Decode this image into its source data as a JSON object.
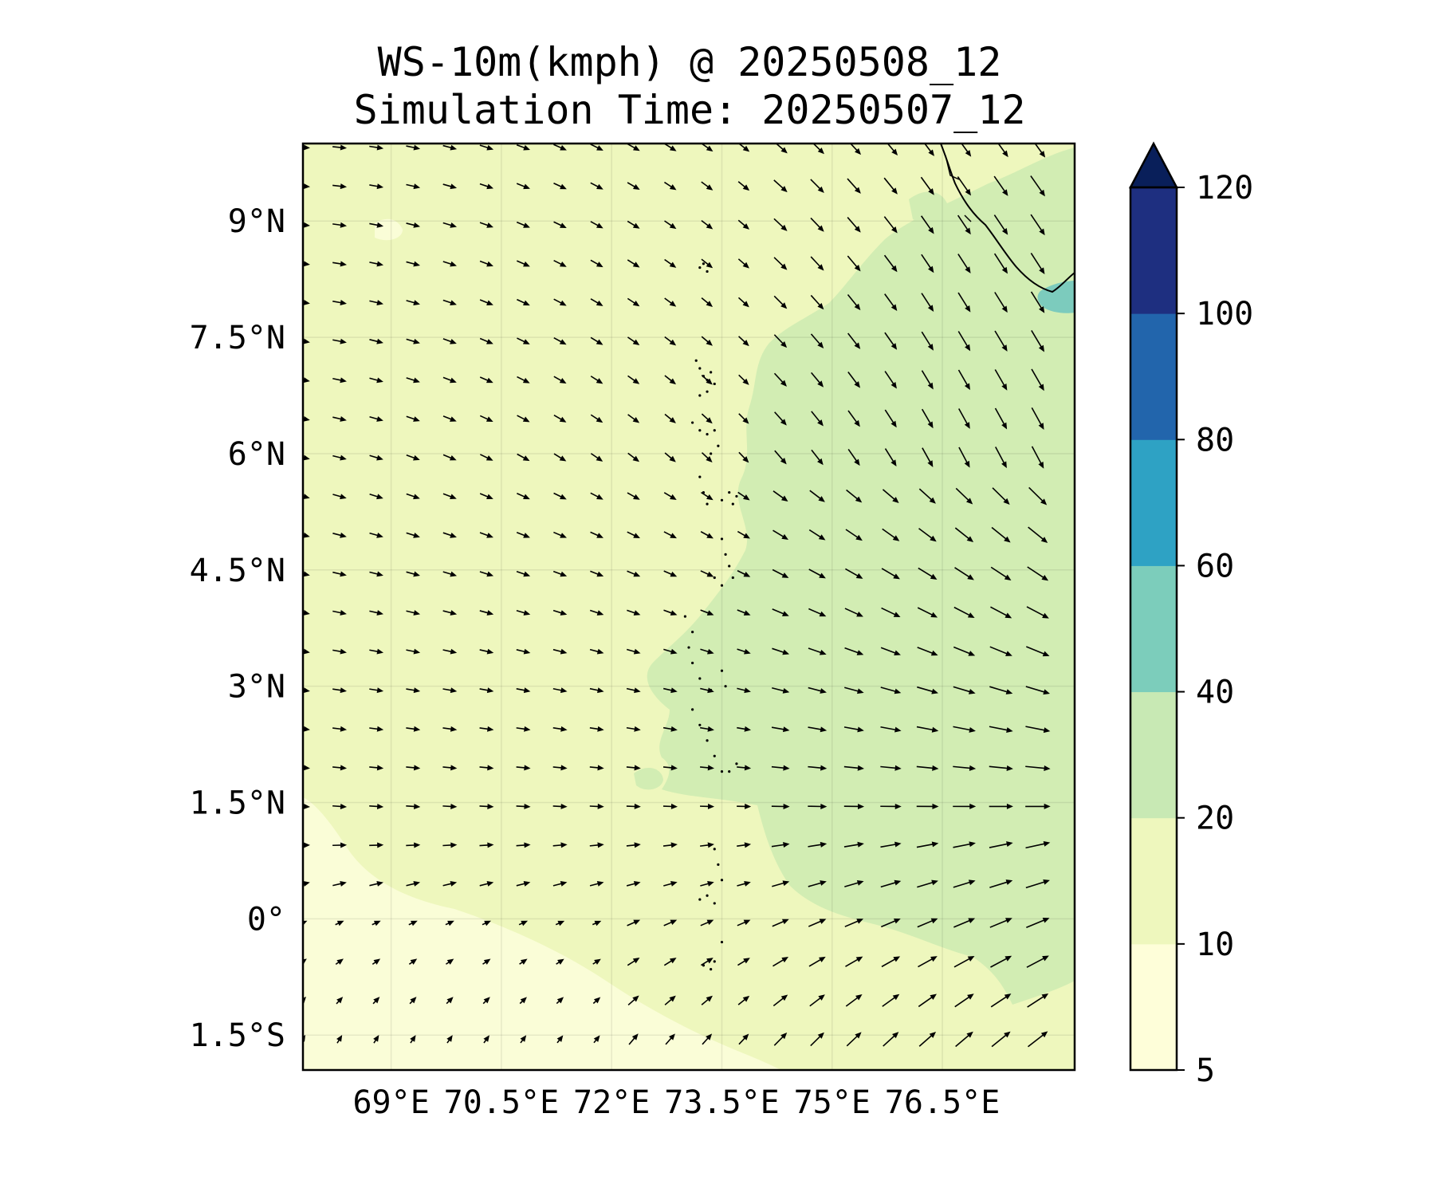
{
  "title": {
    "line1": "WS-10m(kmph) @ 20250508_12",
    "line2": "Simulation Time: 20250507_12"
  },
  "map": {
    "lon_range": [
      67.8,
      78.3
    ],
    "lat_range": [
      -1.95,
      10.0
    ],
    "lon_ticks": [
      {
        "value": 69.0,
        "label": "69°E"
      },
      {
        "value": 70.5,
        "label": "70.5°E"
      },
      {
        "value": 72.0,
        "label": "72°E"
      },
      {
        "value": 73.5,
        "label": "73.5°E"
      },
      {
        "value": 75.0,
        "label": "75°E"
      },
      {
        "value": 76.5,
        "label": "76.5°E"
      }
    ],
    "lat_ticks": [
      {
        "value": 9.0,
        "label": "9°N"
      },
      {
        "value": 7.5,
        "label": "7.5°N"
      },
      {
        "value": 6.0,
        "label": "6°N"
      },
      {
        "value": 4.5,
        "label": "4.5°N"
      },
      {
        "value": 3.0,
        "label": "3°N"
      },
      {
        "value": 1.5,
        "label": "1.5°N"
      },
      {
        "value": 0.0,
        "label": "0°"
      },
      {
        "value": -1.5,
        "label": "1.5°S"
      }
    ],
    "gridlines": true,
    "background_color": "#eef7bd",
    "zone_colors": {
      "calm": "#fafdd7",
      "moderate": "#d2edb3",
      "strong": "#7ccbbd"
    },
    "arrow_color": "#000000"
  },
  "colorbar": {
    "levels": [
      "5",
      "10",
      "20",
      "40",
      "60",
      "80",
      "100",
      "120"
    ],
    "colors": [
      "#fefed9",
      "#eef7bd",
      "#c8e9b4",
      "#7ccdbb",
      "#2ea2c4",
      "#2265ac",
      "#1e2f80"
    ],
    "extend_color": "#091f5a",
    "extend": "max"
  },
  "chart_data": {
    "type": "heatmap",
    "title": "WS-10m(kmph) @ 20250508_12",
    "subtitle": "Simulation Time: 20250507_12",
    "xlabel": "",
    "ylabel": "",
    "xlim": [
      67.8,
      78.3
    ],
    "ylim": [
      -1.95,
      10.0
    ],
    "variable": "10 m wind speed (kmph) with wind-direction vectors",
    "legend": "colorbar right",
    "field_summary": {
      "west_of_74E": "10-20",
      "east_of_74E_north_of_0": "20-40",
      "south_west_corner": "5-10",
      "near_southwest_Sri_Lanka_coast": "40-60"
    },
    "vector_field": {
      "lon_start": 67.8,
      "lon_step": 0.5,
      "lon_count": 21,
      "lat_start": 9.95,
      "lat_step": -0.5,
      "lat_count": 24,
      "pattern": "north of 6°N: flow from west-northwest turning southeast towards 76°E; 1-3°N: eastward; south of 0°: from southwest turning northeast"
    }
  }
}
